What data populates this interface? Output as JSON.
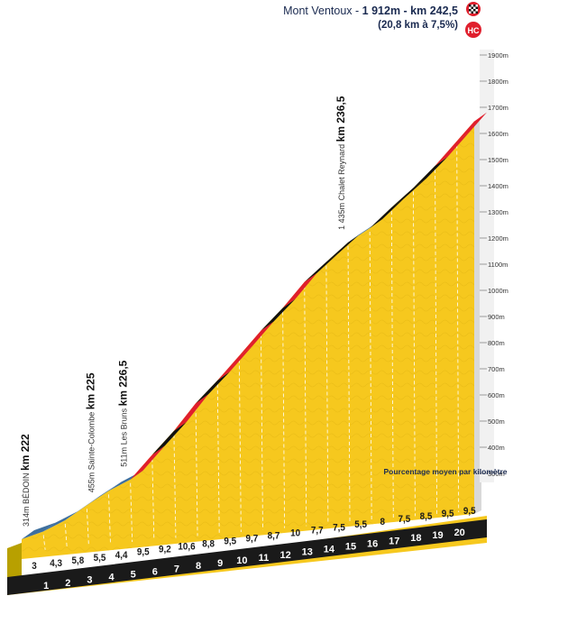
{
  "summit": {
    "name_line": "Mont Ventoux - ",
    "alt_km": "1 912m - km 242,5",
    "stats": "(20,8 km à 7,5%)",
    "category": "HC"
  },
  "legend_note": "Pourcentage moyen par kilomètre",
  "places": [
    {
      "alt": "314m",
      "name": "BÉDOIN",
      "km_label": "km 222",
      "km": 0
    },
    {
      "alt": "455m",
      "name": "Sainte-Colombe",
      "km_label": "km 225",
      "km": 3
    },
    {
      "alt": "511m",
      "name": "Les Bruns",
      "km_label": "km 226,5",
      "km": 4.5
    },
    {
      "alt": "1 435m",
      "name": "Chalet Reynard",
      "km_label": "km 236,5",
      "km": 14.5
    }
  ],
  "colors": {
    "fill": "#f6c81e",
    "gentle": "#3e6f9e",
    "medium": "#111111",
    "steep": "#e01f2d",
    "axis_band": "#1a1a1a"
  },
  "chart_data": {
    "type": "area",
    "title": "",
    "xlabel": "",
    "ylabel": "",
    "ylim": [
      300,
      1900
    ],
    "y_ticks": [
      300,
      400,
      500,
      600,
      700,
      800,
      900,
      1000,
      1100,
      1200,
      1300,
      1400,
      1500,
      1600,
      1700,
      1800,
      1900
    ],
    "y_tick_labels": [
      "300m",
      "400m",
      "500m",
      "600m",
      "700m",
      "800m",
      "900m",
      "1000m",
      "1100m",
      "1200m",
      "1300m",
      "1400m",
      "1500m",
      "1600m",
      "1700m",
      "1800m",
      "1900m"
    ],
    "km_markers": [
      "1",
      "2",
      "3",
      "4",
      "5",
      "6",
      "7",
      "8",
      "9",
      "10",
      "11",
      "12",
      "13",
      "14",
      "15",
      "16",
      "17",
      "18",
      "19",
      "20"
    ],
    "gradients": [
      "3",
      "4,3",
      "5,8",
      "5,5",
      "4,4",
      "9,5",
      "9,2",
      "10,6",
      "8,8",
      "9,5",
      "9,7",
      "8,7",
      "10",
      "7,7",
      "7,5",
      "5,5",
      "8",
      "7,5",
      "8,5",
      "9,5",
      "9,5"
    ],
    "gradient_values": [
      3,
      4.3,
      5.8,
      5.5,
      4.4,
      9.5,
      9.2,
      10.6,
      8.8,
      9.5,
      9.7,
      8.7,
      10,
      7.7,
      7.5,
      5.5,
      8,
      7.5,
      8.5,
      9.5,
      9.5
    ],
    "segment_lengths_km": [
      1,
      1,
      1,
      1,
      1,
      1,
      1,
      1,
      1,
      1,
      1,
      1,
      1,
      1,
      1,
      1,
      1,
      1,
      1,
      1,
      0.8
    ],
    "start_altitude": 314,
    "summit_altitude": 1912
  }
}
